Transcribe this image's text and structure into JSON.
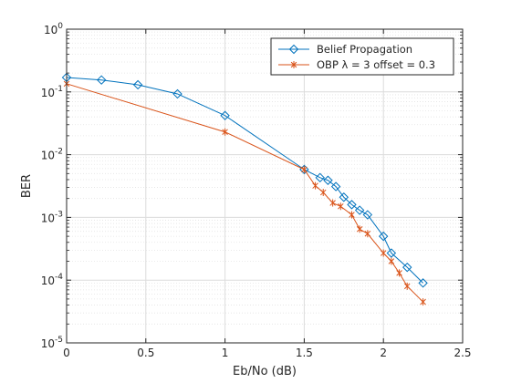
{
  "chart_data": {
    "type": "line",
    "title": "",
    "xlabel": "Eb/No (dB)",
    "ylabel": "BER",
    "xlim": [
      0,
      2.5
    ],
    "ylim": [
      1e-05,
      1
    ],
    "y_scale": "log",
    "grid": true,
    "minor_grid": true,
    "legend_position": "top-right",
    "x_ticks": [
      {
        "value": 0,
        "label": "0"
      },
      {
        "value": 0.5,
        "label": "0.5"
      },
      {
        "value": 1,
        "label": "1"
      },
      {
        "value": 1.5,
        "label": "1.5"
      },
      {
        "value": 2,
        "label": "2"
      },
      {
        "value": 2.5,
        "label": "2.5"
      }
    ],
    "y_ticks": [
      {
        "value": 1,
        "base": "10",
        "exp": "0"
      },
      {
        "value": 0.1,
        "base": "10",
        "exp": "-1"
      },
      {
        "value": 0.01,
        "base": "10",
        "exp": "-2"
      },
      {
        "value": 0.001,
        "base": "10",
        "exp": "-3"
      },
      {
        "value": 0.0001,
        "base": "10",
        "exp": "-4"
      },
      {
        "value": 1e-05,
        "base": "10",
        "exp": "-5"
      }
    ],
    "series": [
      {
        "name": "Belief Propagation",
        "color": "#0072BD",
        "marker": "diamond",
        "x": [
          0,
          0.22,
          0.45,
          0.7,
          1.0,
          1.5,
          1.6,
          1.65,
          1.7,
          1.75,
          1.8,
          1.85,
          1.9,
          2.0,
          2.05,
          2.15,
          2.25
        ],
        "y": [
          0.17,
          0.155,
          0.13,
          0.093,
          0.042,
          0.0058,
          0.0043,
          0.0039,
          0.0031,
          0.0021,
          0.0016,
          0.0013,
          0.0011,
          0.0005,
          0.00027,
          0.00016,
          9e-05
        ]
      },
      {
        "name": "OBP  λ = 3 offset = 0.3",
        "color": "#D95319",
        "marker": "asterisk",
        "x": [
          0,
          1.0,
          1.5,
          1.57,
          1.62,
          1.68,
          1.73,
          1.8,
          1.85,
          1.9,
          2.0,
          2.05,
          2.1,
          2.15,
          2.25
        ],
        "y": [
          0.135,
          0.023,
          0.0058,
          0.0032,
          0.0025,
          0.0017,
          0.0015,
          0.0011,
          0.00065,
          0.00055,
          0.00027,
          0.0002,
          0.00013,
          8e-05,
          4.5e-05
        ]
      }
    ]
  }
}
